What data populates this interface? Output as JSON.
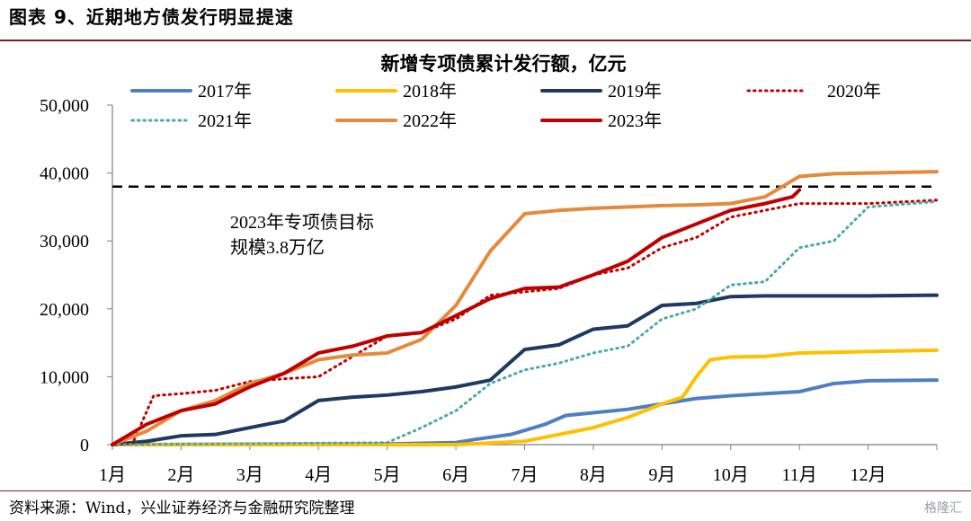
{
  "figure_title": "图表 9、近期地方债发行明显提速",
  "source": "资料来源：Wind，兴业证券经济与金融研究院整理",
  "watermark": "格隆汇",
  "chart_data": {
    "type": "line",
    "title": "新增专项债累计发行额，亿元",
    "xlabel": "",
    "ylabel": "",
    "categories": [
      "1月",
      "2月",
      "3月",
      "4月",
      "5月",
      "6月",
      "7月",
      "8月",
      "9月",
      "10月",
      "11月",
      "12月"
    ],
    "x_unit": "month (1 = start of January, 13 = end of December)",
    "ylim": [
      0,
      50000
    ],
    "y_ticks": [
      "0",
      "10,000",
      "20,000",
      "30,000",
      "40,000",
      "50,000"
    ],
    "y_tick_values": [
      0,
      10000,
      20000,
      30000,
      40000,
      50000
    ],
    "grid": false,
    "legend_position": "top",
    "target_line": {
      "value": 38000,
      "label_line1": "2023年专项债目标",
      "label_line2": "规模3.8万亿",
      "color": "#000000"
    },
    "series": [
      {
        "name": "2017年",
        "color": "#4f7fbf",
        "style": "solid",
        "x": [
          1,
          5,
          6,
          6.3,
          6.8,
          7.3,
          7.6,
          8,
          8.5,
          9,
          9.5,
          10,
          10.5,
          11,
          11.5,
          12,
          13
        ],
        "y": [
          0,
          100,
          300,
          800,
          1500,
          3000,
          4300,
          4700,
          5200,
          6000,
          6800,
          7200,
          7500,
          7800,
          9000,
          9400,
          9500
        ]
      },
      {
        "name": "2018年",
        "color": "#ffc000",
        "style": "solid",
        "x": [
          1,
          6,
          7,
          7.5,
          8,
          8.5,
          9,
          9.3,
          9.5,
          9.7,
          10,
          10.5,
          11,
          12,
          13
        ],
        "y": [
          0,
          0,
          500,
          1500,
          2500,
          4000,
          6000,
          7000,
          10000,
          12500,
          12900,
          13000,
          13500,
          13700,
          13900
        ]
      },
      {
        "name": "2019年",
        "color": "#1f3864",
        "style": "solid",
        "x": [
          1,
          1.5,
          2,
          2.5,
          3,
          3.5,
          4,
          4.5,
          5,
          5.5,
          6,
          6.5,
          7,
          7.5,
          8,
          8.5,
          9,
          9.5,
          10,
          10.5,
          11,
          12,
          13
        ],
        "y": [
          0,
          500,
          1300,
          1500,
          2500,
          3500,
          6500,
          7000,
          7300,
          7800,
          8500,
          9500,
          14000,
          14700,
          17000,
          17500,
          20500,
          20800,
          21800,
          21900,
          21900,
          21900,
          22000
        ]
      },
      {
        "name": "2020年",
        "color": "#c00000",
        "style": "dotted",
        "x": [
          1,
          1.3,
          1.6,
          2,
          2.5,
          3,
          3.5,
          4,
          4.5,
          5,
          5.5,
          6,
          6.5,
          7,
          7.5,
          8,
          8.5,
          9,
          9.5,
          10,
          10.5,
          11,
          11.5,
          12,
          13
        ],
        "y": [
          0,
          300,
          7200,
          7500,
          8000,
          9300,
          9700,
          10000,
          13000,
          16000,
          16500,
          18500,
          22000,
          22500,
          23000,
          25000,
          26000,
          29000,
          30500,
          33500,
          34500,
          35500,
          35500,
          35500,
          36000
        ]
      },
      {
        "name": "2021年",
        "color": "#4aa8a8",
        "style": "dotted",
        "x": [
          1,
          5,
          5.5,
          6,
          6.5,
          7,
          7.5,
          8,
          8.5,
          9,
          9.5,
          10,
          10.5,
          11,
          11.5,
          12,
          13
        ],
        "y": [
          0,
          300,
          2500,
          5000,
          9000,
          11000,
          12000,
          13500,
          14500,
          18500,
          20000,
          23500,
          24000,
          29000,
          30000,
          35000,
          35800
        ]
      },
      {
        "name": "2022年",
        "color": "#e48a3c",
        "style": "solid",
        "x": [
          1,
          1.5,
          2,
          2.5,
          3,
          3.5,
          4,
          4.5,
          5,
          5.5,
          6,
          6.5,
          7,
          7.5,
          8,
          8.5,
          9,
          9.5,
          10,
          10.5,
          11,
          11.5,
          12,
          13
        ],
        "y": [
          0,
          2000,
          5000,
          6500,
          9000,
          10500,
          12500,
          13200,
          13500,
          15500,
          20500,
          28500,
          34000,
          34500,
          34800,
          35000,
          35200,
          35300,
          35500,
          36500,
          39500,
          39900,
          40000,
          40200
        ]
      },
      {
        "name": "2023年",
        "color": "#c00000",
        "style": "solid",
        "x": [
          1,
          1.5,
          2,
          2.5,
          3,
          3.5,
          4,
          4.5,
          5,
          5.5,
          6,
          6.5,
          7,
          7.5,
          8,
          8.5,
          9,
          9.5,
          10,
          10.5,
          10.9,
          11
        ],
        "y": [
          0,
          3000,
          5000,
          6000,
          8500,
          10500,
          13500,
          14500,
          16000,
          16500,
          19000,
          21500,
          23000,
          23200,
          25000,
          27000,
          30500,
          32500,
          34500,
          35500,
          36500,
          37500
        ]
      }
    ]
  }
}
